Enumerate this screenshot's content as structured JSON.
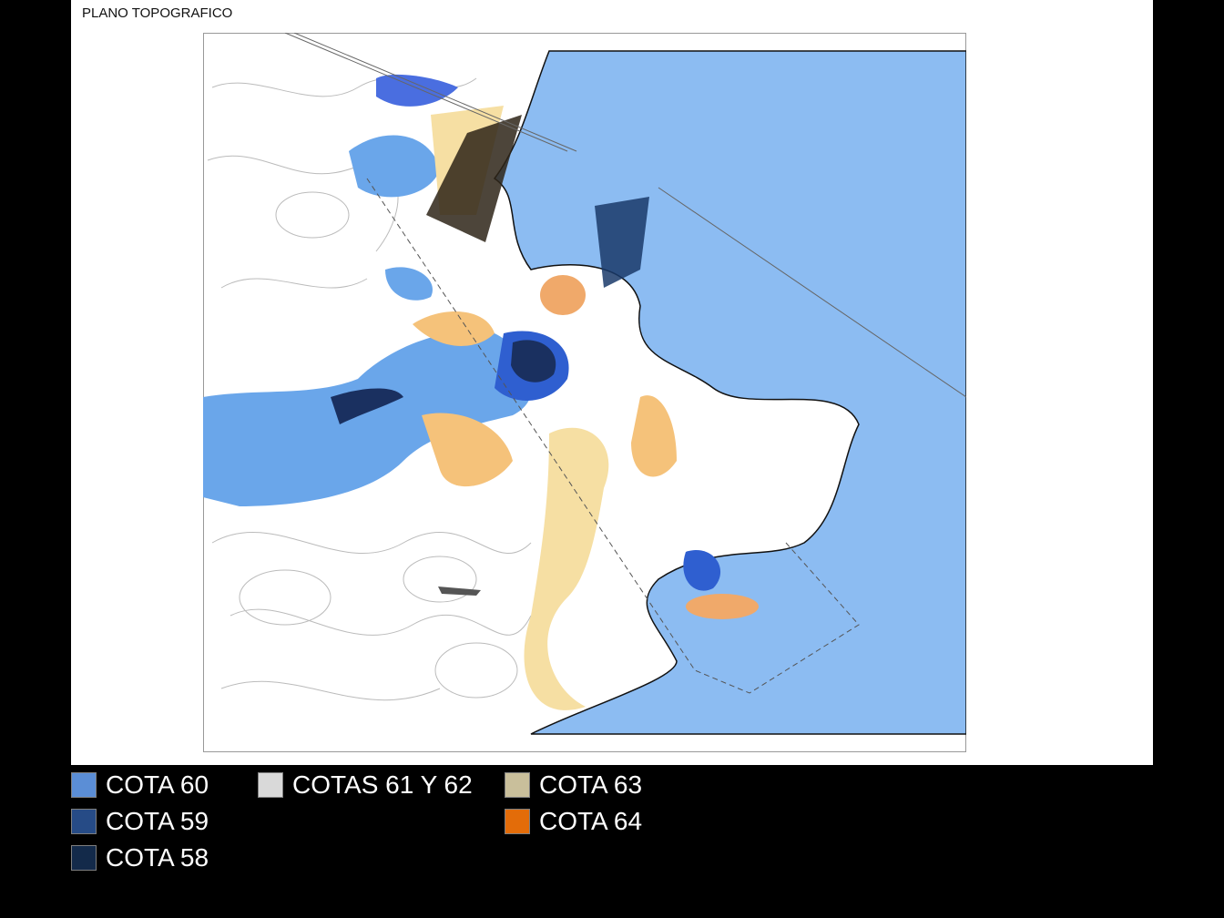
{
  "title": "PLANO TOPOGRAFICO",
  "legend": [
    {
      "label": "COTA 60",
      "color": "#5b8ed6"
    },
    {
      "label": "COTA 59",
      "color": "#264b86"
    },
    {
      "label": "COTA 58",
      "color": "#132a4a"
    },
    {
      "label": "COTAS 61 Y 62",
      "color": "#d9d9d9"
    },
    {
      "label": "COTA 63",
      "color": "#c9bf9b"
    },
    {
      "label": "COTA 64",
      "color": "#e36c09"
    }
  ]
}
